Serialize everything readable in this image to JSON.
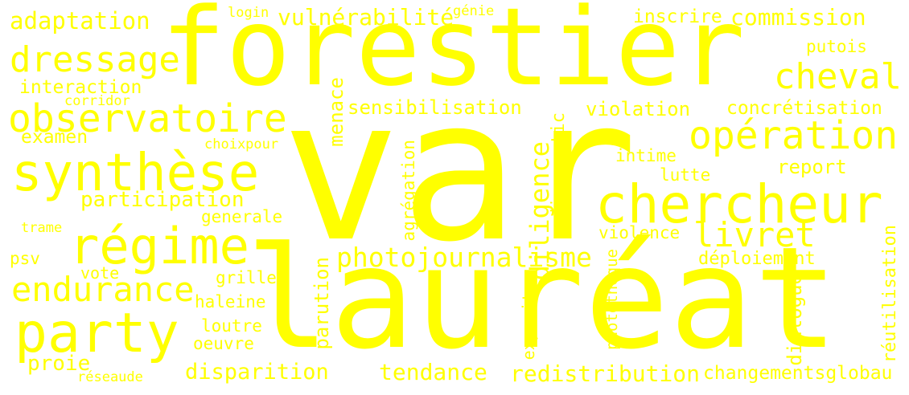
{
  "cloud": {
    "color": "#ffff00",
    "background": "#ffffff",
    "words": {
      "var": "var",
      "forestier": "forestier",
      "laureat": "lauréat",
      "chercheur": "chercheur",
      "synthese": "synthèse",
      "regime": "régime",
      "party": "party",
      "observatoire": "observatoire",
      "operation": "opération",
      "dressage": "dressage",
      "cheval": "cheval",
      "endurance": "endurance",
      "livret": "livret",
      "photojournalisme": "photojournalisme",
      "adaptation": "adaptation",
      "vulnerabilite": "vulnérabilité",
      "commission": "commission",
      "participation": "participation",
      "tendance": "tendance",
      "redistribution": "redistribution",
      "disparition": "disparition",
      "sensibilisation": "sensibilisation",
      "violation": "violation",
      "concretisation": "concrétisation",
      "interaction": "interaction",
      "examen": "examen",
      "inscrire": "inscrire",
      "report": "report",
      "changementsglobau": "changementsglobau",
      "deploiement": "déploiement",
      "violence": "violence",
      "lutte": "lutte",
      "intime": "intime",
      "putois": "putois",
      "proie": "proie",
      "generale": "generale",
      "grille": "grille",
      "haleine": "haleine",
      "loutre": "loutre",
      "oeuvre": "oeuvre",
      "vote": "vote",
      "psv": "psv",
      "login": "login",
      "genie": "génie",
      "corridor": "corridor",
      "choixpour": "choixpour",
      "trame": "trame",
      "reseaude": "réseaude",
      "menace": "menace",
      "diligence": "diligence",
      "diagnostic": "diagnostic",
      "agregation": "agrégation",
      "exposition": "expositon",
      "parution": "parution",
      "phototheque": "photothèque",
      "dialogue": "dialogue",
      "reutilisation": "réutilisation"
    }
  }
}
